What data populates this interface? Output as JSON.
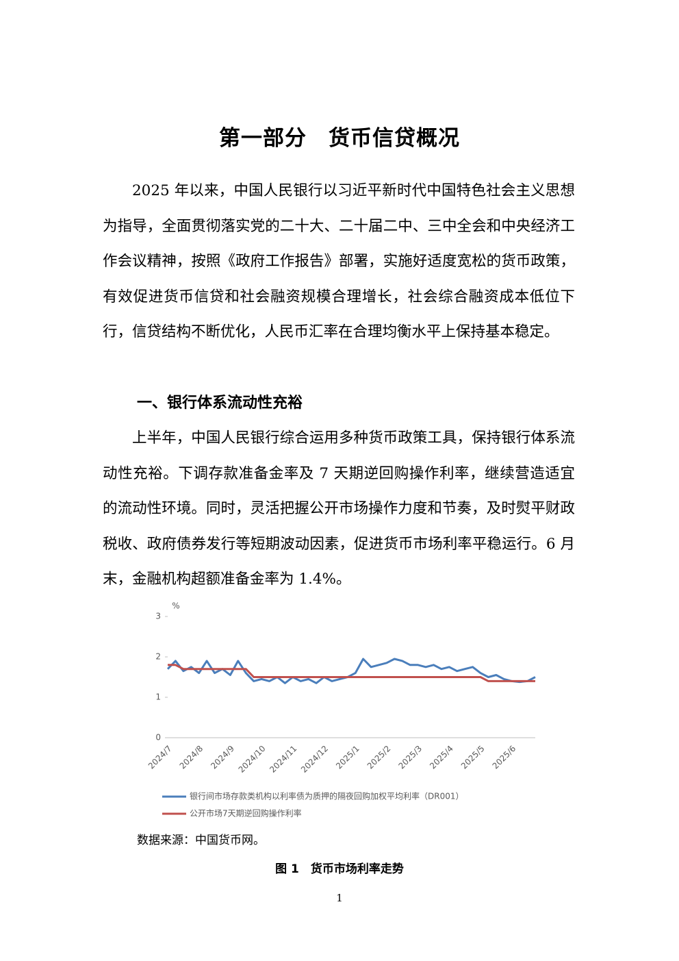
{
  "header": {
    "title": "第一部分　货币信贷概况"
  },
  "body": {
    "paragraphs": [
      "2025 年以来，中国人民银行以习近平新时代中国特色社会主义思想为指导，全面贯彻落实党的二十大、二十届二中、三中全会和中央经济工作会议精神，按照《政府工作报告》部署，实施好适度宽松的货币政策，有效促进货币信贷和社会融资规模合理增长，社会综合融资成本低位下行，信贷结构不断优化，人民币汇率在合理均衡水平上保持基本稳定。",
      "上半年，中国人民银行综合运用多种货币政策工具，保持银行体系流动性充裕。下调存款准备金率及 7 天期逆回购操作利率，继续营造适宜的流动性环境。同时，灵活把握公开市场操作力度和节奏，及时熨平财政税收、政府债券发行等短期波动因素，促进货币市场利率平稳运行。6 月末，金融机构超额准备金率为 1.4%。"
    ],
    "section_heading": "一、银行体系流动性充裕"
  },
  "chart_data": {
    "type": "line",
    "y_label": "%",
    "categories": [
      "2024/7",
      null,
      null,
      null,
      "2024/8",
      null,
      null,
      null,
      "2024/9",
      null,
      null,
      null,
      "2024/10",
      null,
      null,
      null,
      "2024/11",
      null,
      null,
      null,
      "2024/12",
      null,
      null,
      null,
      "2025/1",
      null,
      null,
      null,
      "2025/2",
      null,
      null,
      null,
      "2025/3",
      null,
      null,
      null,
      "2025/4",
      null,
      null,
      null,
      "2025/5",
      null,
      null,
      null,
      "2025/6",
      null,
      null,
      null
    ],
    "series": [
      {
        "name": "银行间市场存款类机构以利率债为质押的隔夜回购加权平均利率（DR001）",
        "color": "#4a7ebb",
        "values": [
          1.7,
          1.9,
          1.65,
          1.75,
          1.6,
          1.9,
          1.6,
          1.7,
          1.55,
          1.9,
          1.6,
          1.4,
          1.45,
          1.4,
          1.5,
          1.35,
          1.5,
          1.4,
          1.45,
          1.35,
          1.5,
          1.4,
          1.45,
          1.5,
          1.6,
          1.95,
          1.75,
          1.8,
          1.85,
          1.95,
          1.9,
          1.8,
          1.8,
          1.75,
          1.8,
          1.7,
          1.75,
          1.65,
          1.7,
          1.75,
          1.6,
          1.5,
          1.55,
          1.45,
          1.4,
          1.38,
          1.4,
          1.5
        ]
      },
      {
        "name": "公开市场7天期逆回购操作利率",
        "color": "#c0504d",
        "values": [
          1.8,
          1.8,
          1.7,
          1.7,
          1.7,
          1.7,
          1.7,
          1.7,
          1.7,
          1.7,
          1.7,
          1.5,
          1.5,
          1.5,
          1.5,
          1.5,
          1.5,
          1.5,
          1.5,
          1.5,
          1.5,
          1.5,
          1.5,
          1.5,
          1.5,
          1.5,
          1.5,
          1.5,
          1.5,
          1.5,
          1.5,
          1.5,
          1.5,
          1.5,
          1.5,
          1.5,
          1.5,
          1.5,
          1.5,
          1.5,
          1.5,
          1.4,
          1.4,
          1.4,
          1.4,
          1.4,
          1.4,
          1.4
        ]
      }
    ],
    "ylim": [
      0,
      3
    ],
    "yticks": [
      0,
      1,
      2,
      3
    ],
    "legend": "bottom"
  },
  "figure": {
    "source": "数据来源：中国货币网。",
    "caption": "图 1　货币市场利率走势"
  },
  "footer": {
    "page_number": "1"
  }
}
